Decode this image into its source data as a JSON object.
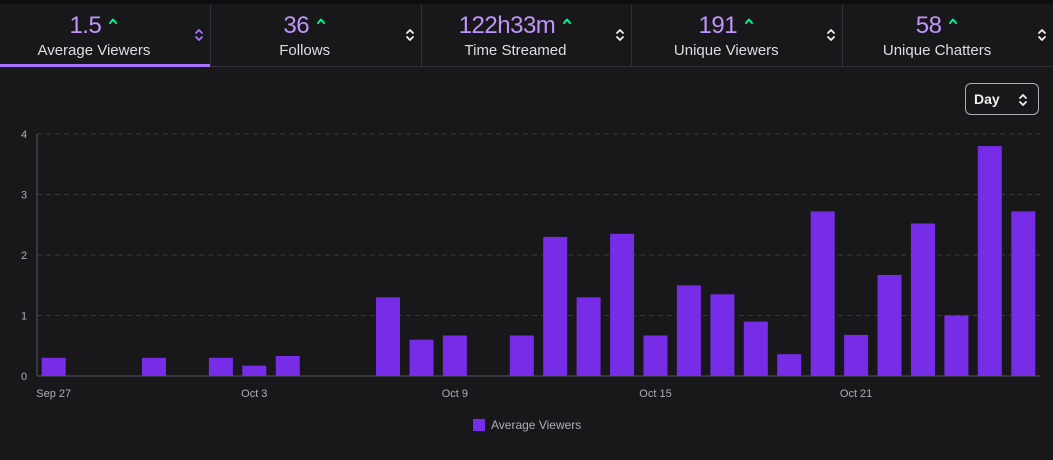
{
  "colors": {
    "accent": "#bf94ff",
    "bar": "#772ce8",
    "trend_up": "#00f593",
    "active_underline": "#a970ff"
  },
  "stats": [
    {
      "value": "1.5",
      "label": "Average Viewers",
      "trend_icon": "arrow-up-icon",
      "active": true
    },
    {
      "value": "36",
      "label": "Follows",
      "trend_icon": "arrow-up-icon",
      "active": false
    },
    {
      "value": "122h33m",
      "label": "Time Streamed",
      "trend_icon": "arrow-up-icon",
      "active": false
    },
    {
      "value": "191",
      "label": "Unique Viewers",
      "trend_icon": "arrow-up-icon",
      "active": false
    },
    {
      "value": "58",
      "label": "Unique Chatters",
      "trend_icon": "arrow-up-icon",
      "active": false
    }
  ],
  "granularity": {
    "selected": "Day"
  },
  "chart_data": {
    "type": "bar",
    "x": [
      "Sep 27",
      "Sep 28",
      "Sep 29",
      "Sep 30",
      "Oct 1",
      "Oct 2",
      "Oct 3",
      "Oct 4",
      "Oct 5",
      "Oct 6",
      "Oct 7",
      "Oct 8",
      "Oct 9",
      "Oct 10",
      "Oct 11",
      "Oct 12",
      "Oct 13",
      "Oct 14",
      "Oct 15",
      "Oct 16",
      "Oct 17",
      "Oct 18",
      "Oct 19",
      "Oct 20",
      "Oct 21",
      "Oct 22",
      "Oct 23",
      "Oct 24",
      "Oct 25",
      "Oct 26"
    ],
    "xtick_labels": [
      "Sep 27",
      "Oct 3",
      "Oct 9",
      "Oct 15",
      "Oct 21"
    ],
    "series": [
      {
        "name": "Average Viewers",
        "values": [
          0.3,
          0,
          0,
          0.3,
          0,
          0.3,
          0.17,
          0.33,
          0,
          0,
          1.3,
          0.6,
          0.67,
          0,
          0.67,
          2.3,
          1.3,
          2.35,
          0.67,
          1.5,
          1.35,
          0.9,
          0.36,
          2.72,
          0.68,
          1.67,
          2.52,
          1.0,
          3.8,
          2.72
        ]
      }
    ],
    "ylim": [
      0,
      4
    ],
    "yticks": [
      0,
      1,
      2,
      3,
      4
    ],
    "grid": true,
    "legend": "bottom-center"
  }
}
